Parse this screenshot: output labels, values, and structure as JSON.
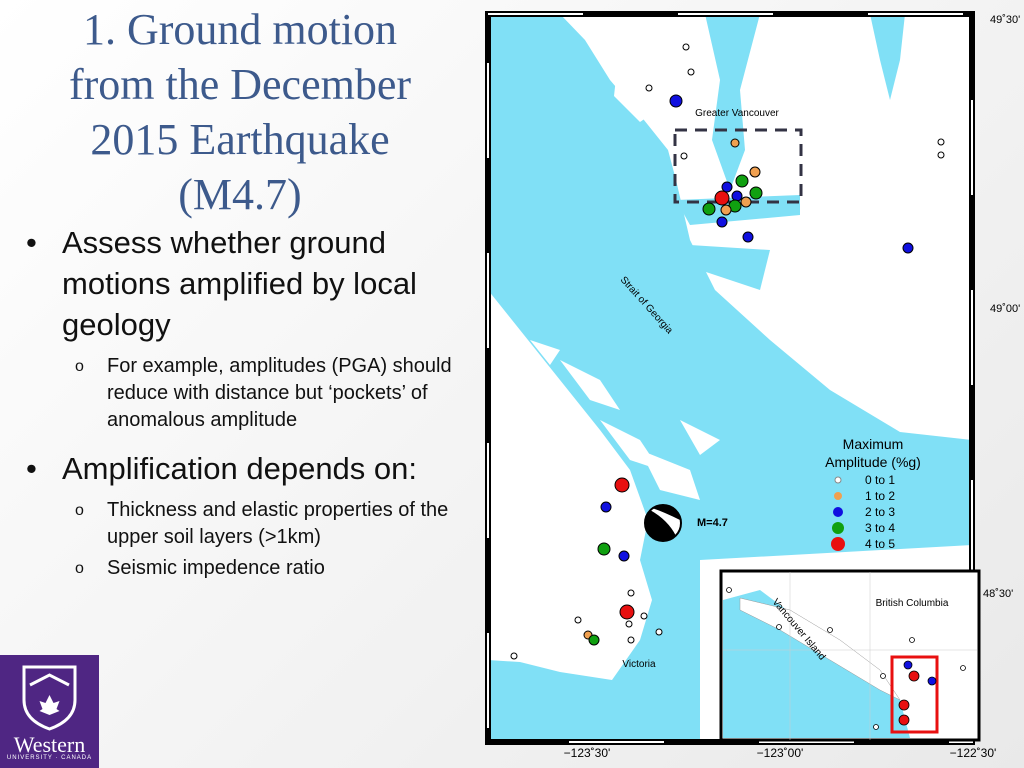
{
  "slide": {
    "title": [
      "1. Ground motion",
      "from the December",
      "2015 Earthquake",
      "(M4.7)"
    ],
    "bullets": [
      {
        "text": "Assess whether ground motions amplified by local geology",
        "subs": [
          "For example, amplitudes (PGA) should reduce with distance but ‘pockets’ of anomalous amplitude"
        ]
      },
      {
        "text": "Amplification depends on:",
        "subs": [
          "Thickness and elastic properties of the upper soil layers (>1km)",
          "Seismic impedence ratio"
        ]
      }
    ],
    "logo": {
      "name": "Western",
      "subtitle": "UNIVERSITY · CANADA"
    }
  },
  "map": {
    "labels": {
      "vancouver": "Greater Vancouver",
      "strait": "Strait of Georgia",
      "magnitude": "M=4.7",
      "victoria": "Victoria"
    },
    "lat_labels": [
      "49˚30'",
      "49˚00'",
      "48˚30'"
    ],
    "lon_labels": [
      "−123˚30'",
      "−123˚00'",
      "−122˚30'"
    ],
    "legend": {
      "title": [
        "Maximum",
        "Amplitude (%g)"
      ],
      "entries": [
        {
          "label": "0 to 1",
          "color": "#ffffff"
        },
        {
          "label": "1 to 2",
          "color": "#f0a050"
        },
        {
          "label": "2 to 3",
          "color": "#1010e0"
        },
        {
          "label": "3 to 4",
          "color": "#10a010"
        },
        {
          "label": "4 to 5",
          "color": "#e81010"
        }
      ]
    },
    "inset": {
      "region": "British Columbia",
      "island": "Vancouver Island"
    }
  }
}
